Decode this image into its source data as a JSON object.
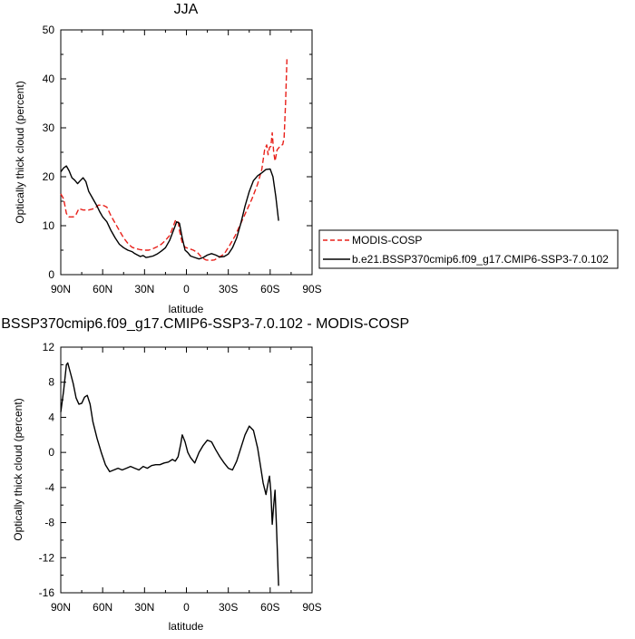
{
  "chart_data": [
    {
      "type": "line",
      "title": "JJA",
      "xlabel": "latitude",
      "ylabel": "Optically thick cloud (percent)",
      "xlim": [
        90,
        -90
      ],
      "ylim": [
        0,
        50
      ],
      "xticks": [
        90,
        60,
        30,
        0,
        -30,
        -60,
        -90
      ],
      "xtick_labels": [
        "90N",
        "60N",
        "30N",
        "0",
        "30S",
        "60S",
        "90S"
      ],
      "yticks": [
        0,
        10,
        20,
        30,
        40,
        50
      ],
      "ytick_labels": [
        "0",
        "10",
        "20",
        "30",
        "40",
        "50"
      ],
      "legend_position": "right",
      "series": [
        {
          "name": "MODIS-COSP",
          "color": "#e8201a",
          "dash": "dashed",
          "points": [
            [
              90,
              16.5
            ],
            [
              88,
              15.5
            ],
            [
              86,
              12.5
            ],
            [
              84,
              11.8
            ],
            [
              81,
              11.8
            ],
            [
              79,
              12.3
            ],
            [
              77,
              13.5
            ],
            [
              74,
              13.2
            ],
            [
              70,
              13.2
            ],
            [
              66,
              13.5
            ],
            [
              63,
              14.2
            ],
            [
              60,
              14.2
            ],
            [
              57,
              13.8
            ],
            [
              54,
              12.0
            ],
            [
              51,
              10.5
            ],
            [
              48,
              9.0
            ],
            [
              45,
              7.5
            ],
            [
              42,
              6.4
            ],
            [
              39,
              5.6
            ],
            [
              36,
              5.3
            ],
            [
              33,
              5.1
            ],
            [
              30,
              5.0
            ],
            [
              27,
              5.0
            ],
            [
              24,
              5.3
            ],
            [
              21,
              5.7
            ],
            [
              18,
              6.2
            ],
            [
              15,
              7.0
            ],
            [
              12,
              8.0
            ],
            [
              10,
              9.4
            ],
            [
              8,
              11.0
            ],
            [
              6,
              11.0
            ],
            [
              5,
              9.0
            ],
            [
              3,
              6.5
            ],
            [
              1,
              5.6
            ],
            [
              -2,
              5.3
            ],
            [
              -5,
              5.0
            ],
            [
              -8,
              4.5
            ],
            [
              -11,
              3.5
            ],
            [
              -14,
              3.0
            ],
            [
              -17,
              2.9
            ],
            [
              -20,
              3.0
            ],
            [
              -23,
              3.5
            ],
            [
              -27,
              4.2
            ],
            [
              -31,
              6.0
            ],
            [
              -35,
              8.0
            ],
            [
              -39,
              10.5
            ],
            [
              -43,
              13.0
            ],
            [
              -47,
              15.5
            ],
            [
              -51,
              18.5
            ],
            [
              -54,
              21.5
            ],
            [
              -56,
              25.5
            ],
            [
              -57.5,
              26.5
            ],
            [
              -58.5,
              24.5
            ],
            [
              -59.5,
              26.0
            ],
            [
              -60.5,
              26.2
            ],
            [
              -61.5,
              29.0
            ],
            [
              -62.5,
              25.0
            ],
            [
              -63.5,
              23.2
            ],
            [
              -65,
              25.5
            ],
            [
              -67,
              26.2
            ],
            [
              -69,
              26.6
            ],
            [
              -70,
              28.0
            ],
            [
              -71,
              35.0
            ],
            [
              -72,
              44.0
            ]
          ]
        },
        {
          "name": "b.e21.BSSP370cmip6.f09_g17.CMIP6-SSP3-7.0.102",
          "color": "#000000",
          "dash": "solid",
          "points": [
            [
              90,
              21.0
            ],
            [
              88,
              21.8
            ],
            [
              86,
              22.2
            ],
            [
              84,
              21.2
            ],
            [
              82,
              19.8
            ],
            [
              80,
              19.3
            ],
            [
              78,
              18.6
            ],
            [
              76,
              19.2
            ],
            [
              74,
              19.8
            ],
            [
              72,
              19.0
            ],
            [
              70,
              17.0
            ],
            [
              68,
              16.0
            ],
            [
              66,
              15.0
            ],
            [
              64,
              14.0
            ],
            [
              62,
              12.8
            ],
            [
              60,
              11.8
            ],
            [
              57,
              10.8
            ],
            [
              54,
              9.0
            ],
            [
              51,
              7.5
            ],
            [
              48,
              6.2
            ],
            [
              45,
              5.5
            ],
            [
              42,
              5.0
            ],
            [
              39,
              4.7
            ],
            [
              37,
              4.3
            ],
            [
              35,
              4.0
            ],
            [
              33,
              3.7
            ],
            [
              31,
              3.9
            ],
            [
              29,
              3.5
            ],
            [
              27,
              3.6
            ],
            [
              24,
              3.8
            ],
            [
              21,
              4.2
            ],
            [
              18,
              4.8
            ],
            [
              15,
              5.5
            ],
            [
              12,
              7.0
            ],
            [
              10,
              8.5
            ],
            [
              8,
              10.0
            ],
            [
              7,
              10.8
            ],
            [
              5,
              10.5
            ],
            [
              3,
              7.5
            ],
            [
              1,
              5.0
            ],
            [
              -1,
              4.5
            ],
            [
              -3,
              3.8
            ],
            [
              -6,
              3.5
            ],
            [
              -9,
              3.2
            ],
            [
              -12,
              3.5
            ],
            [
              -15,
              4.0
            ],
            [
              -18,
              4.3
            ],
            [
              -21,
              4.0
            ],
            [
              -24,
              3.6
            ],
            [
              -27,
              3.7
            ],
            [
              -30,
              4.2
            ],
            [
              -33,
              5.5
            ],
            [
              -36,
              7.5
            ],
            [
              -39,
              10.5
            ],
            [
              -42,
              14.0
            ],
            [
              -45,
              17.0
            ],
            [
              -48,
              19.2
            ],
            [
              -51,
              20.2
            ],
            [
              -54,
              20.8
            ],
            [
              -57,
              21.5
            ],
            [
              -60,
              21.6
            ],
            [
              -62,
              20.0
            ],
            [
              -64,
              16.0
            ],
            [
              -66,
              11.0
            ]
          ]
        }
      ]
    },
    {
      "type": "line",
      "title": ".BSSP370cmip6.f09_g17.CMIP6-SSP3-7.0.102 - MODIS-COSP",
      "xlabel": "latitude",
      "ylabel": "Optically thick cloud (percent)",
      "xlim": [
        90,
        -90
      ],
      "ylim": [
        -16,
        12
      ],
      "xticks": [
        90,
        60,
        30,
        0,
        -30,
        -60,
        -90
      ],
      "xtick_labels": [
        "90N",
        "60N",
        "30N",
        "0",
        "30S",
        "60S",
        "90S"
      ],
      "yticks": [
        -16,
        -12,
        -8,
        -4,
        0,
        4,
        8,
        12
      ],
      "ytick_labels": [
        "-16",
        "-12",
        "-8",
        "-4",
        "0",
        "4",
        "8",
        "12"
      ],
      "series": [
        {
          "color": "#000000",
          "dash": "solid",
          "points": [
            [
              90,
              4.6
            ],
            [
              88,
              7.0
            ],
            [
              86,
              10.0
            ],
            [
              85,
              10.2
            ],
            [
              83,
              9.0
            ],
            [
              81,
              7.8
            ],
            [
              79,
              6.2
            ],
            [
              77,
              5.5
            ],
            [
              75,
              5.6
            ],
            [
              73,
              6.3
            ],
            [
              71,
              6.5
            ],
            [
              69,
              5.5
            ],
            [
              67,
              3.5
            ],
            [
              64,
              1.6
            ],
            [
              61,
              0.0
            ],
            [
              58,
              -1.4
            ],
            [
              55,
              -2.2
            ],
            [
              52,
              -2.0
            ],
            [
              49,
              -1.8
            ],
            [
              46,
              -2.0
            ],
            [
              43,
              -1.8
            ],
            [
              40,
              -1.6
            ],
            [
              37,
              -1.8
            ],
            [
              34,
              -2.0
            ],
            [
              31,
              -1.6
            ],
            [
              28,
              -1.8
            ],
            [
              25,
              -1.5
            ],
            [
              22,
              -1.4
            ],
            [
              19,
              -1.4
            ],
            [
              16,
              -1.2
            ],
            [
              13,
              -1.1
            ],
            [
              10,
              -0.8
            ],
            [
              8,
              -1.0
            ],
            [
              6,
              -0.5
            ],
            [
              4,
              1.0
            ],
            [
              3,
              2.0
            ],
            [
              1,
              1.2
            ],
            [
              -1,
              0.0
            ],
            [
              -3,
              -0.6
            ],
            [
              -6,
              -1.2
            ],
            [
              -9,
              0.0
            ],
            [
              -12,
              0.8
            ],
            [
              -15,
              1.4
            ],
            [
              -18,
              1.2
            ],
            [
              -21,
              0.3
            ],
            [
              -24,
              -0.5
            ],
            [
              -27,
              -1.2
            ],
            [
              -30,
              -1.8
            ],
            [
              -33,
              -2.0
            ],
            [
              -36,
              -1.0
            ],
            [
              -39,
              0.5
            ],
            [
              -42,
              2.0
            ],
            [
              -45,
              3.0
            ],
            [
              -48,
              2.5
            ],
            [
              -51,
              0.5
            ],
            [
              -53,
              -1.5
            ],
            [
              -55,
              -3.5
            ],
            [
              -57,
              -4.8
            ],
            [
              -58.5,
              -3.5
            ],
            [
              -59.5,
              -2.7
            ],
            [
              -60.5,
              -4.5
            ],
            [
              -61.5,
              -8.2
            ],
            [
              -62.5,
              -6.0
            ],
            [
              -63.5,
              -4.3
            ],
            [
              -64.5,
              -8.5
            ],
            [
              -66,
              -15.2
            ]
          ]
        }
      ]
    }
  ]
}
